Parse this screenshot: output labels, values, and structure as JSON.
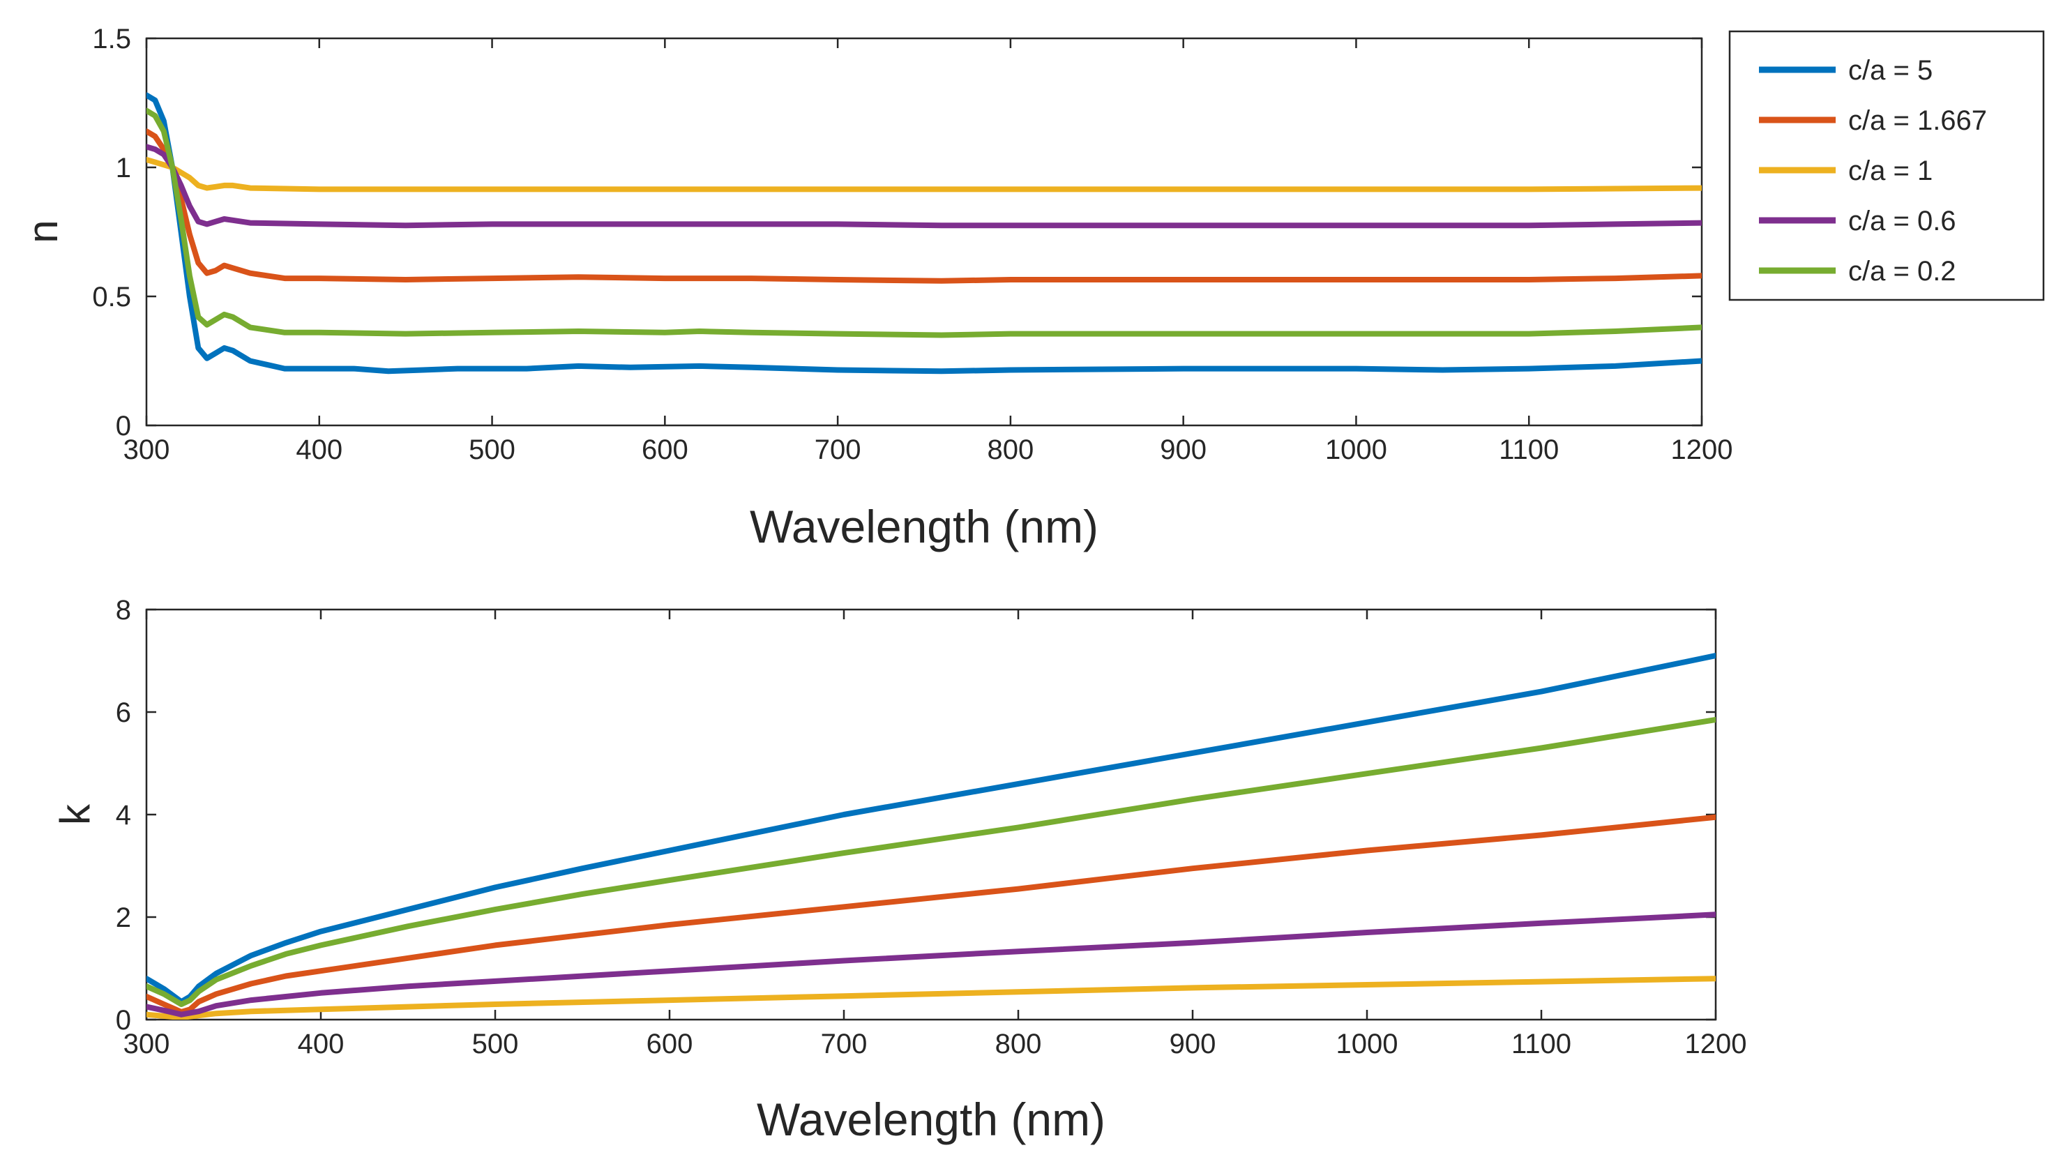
{
  "chart_data": [
    {
      "type": "line",
      "panel": "top",
      "title": "",
      "xlabel": "Wavelength (nm)",
      "ylabel": "n",
      "xlim": [
        300,
        1200
      ],
      "ylim": [
        0,
        1.5
      ],
      "xticks": [
        "300",
        "400",
        "500",
        "600",
        "700",
        "800",
        "900",
        "1000",
        "1100",
        "1200"
      ],
      "yticks": [
        "0",
        "0.5",
        "1",
        "1.5"
      ],
      "legend": {
        "placement": "outside-right",
        "entries": [
          "c/a = 5",
          "c/a = 1.667",
          "c/a = 1",
          "c/a = 0.6",
          "c/a = 0.2"
        ]
      },
      "series": [
        {
          "name": "c/a = 5",
          "color": "#0072BD",
          "points": [
            [
              300,
              1.28
            ],
            [
              305,
              1.26
            ],
            [
              310,
              1.18
            ],
            [
              315,
              1.0
            ],
            [
              320,
              0.75
            ],
            [
              325,
              0.5
            ],
            [
              330,
              0.3
            ],
            [
              335,
              0.26
            ],
            [
              340,
              0.28
            ],
            [
              345,
              0.3
            ],
            [
              350,
              0.29
            ],
            [
              360,
              0.25
            ],
            [
              380,
              0.22
            ],
            [
              400,
              0.22
            ],
            [
              420,
              0.22
            ],
            [
              440,
              0.21
            ],
            [
              460,
              0.215
            ],
            [
              480,
              0.22
            ],
            [
              500,
              0.22
            ],
            [
              520,
              0.22
            ],
            [
              550,
              0.23
            ],
            [
              580,
              0.225
            ],
            [
              620,
              0.23
            ],
            [
              650,
              0.225
            ],
            [
              700,
              0.215
            ],
            [
              760,
              0.21
            ],
            [
              800,
              0.215
            ],
            [
              900,
              0.22
            ],
            [
              1000,
              0.22
            ],
            [
              1050,
              0.215
            ],
            [
              1100,
              0.22
            ],
            [
              1150,
              0.23
            ],
            [
              1200,
              0.25
            ]
          ]
        },
        {
          "name": "c/a = 1.667",
          "color": "#D95319",
          "points": [
            [
              300,
              1.14
            ],
            [
              305,
              1.12
            ],
            [
              310,
              1.07
            ],
            [
              315,
              1.0
            ],
            [
              320,
              0.88
            ],
            [
              325,
              0.74
            ],
            [
              330,
              0.63
            ],
            [
              335,
              0.59
            ],
            [
              340,
              0.6
            ],
            [
              345,
              0.62
            ],
            [
              350,
              0.61
            ],
            [
              360,
              0.59
            ],
            [
              380,
              0.57
            ],
            [
              400,
              0.57
            ],
            [
              450,
              0.565
            ],
            [
              500,
              0.57
            ],
            [
              550,
              0.575
            ],
            [
              600,
              0.57
            ],
            [
              650,
              0.57
            ],
            [
              700,
              0.565
            ],
            [
              760,
              0.56
            ],
            [
              800,
              0.565
            ],
            [
              900,
              0.565
            ],
            [
              1000,
              0.565
            ],
            [
              1100,
              0.565
            ],
            [
              1150,
              0.57
            ],
            [
              1200,
              0.58
            ]
          ]
        },
        {
          "name": "c/a = 1",
          "color": "#EDB120",
          "points": [
            [
              300,
              1.03
            ],
            [
              305,
              1.02
            ],
            [
              310,
              1.01
            ],
            [
              315,
              1.0
            ],
            [
              320,
              0.98
            ],
            [
              325,
              0.96
            ],
            [
              330,
              0.93
            ],
            [
              335,
              0.92
            ],
            [
              340,
              0.925
            ],
            [
              345,
              0.93
            ],
            [
              350,
              0.93
            ],
            [
              360,
              0.92
            ],
            [
              400,
              0.915
            ],
            [
              500,
              0.915
            ],
            [
              600,
              0.915
            ],
            [
              700,
              0.915
            ],
            [
              800,
              0.915
            ],
            [
              900,
              0.915
            ],
            [
              1000,
              0.915
            ],
            [
              1100,
              0.915
            ],
            [
              1200,
              0.92
            ]
          ]
        },
        {
          "name": "c/a = 0.6",
          "color": "#7E2F8E",
          "points": [
            [
              300,
              1.08
            ],
            [
              305,
              1.07
            ],
            [
              310,
              1.05
            ],
            [
              315,
              1.0
            ],
            [
              320,
              0.93
            ],
            [
              325,
              0.85
            ],
            [
              330,
              0.79
            ],
            [
              335,
              0.78
            ],
            [
              340,
              0.79
            ],
            [
              345,
              0.8
            ],
            [
              350,
              0.795
            ],
            [
              360,
              0.785
            ],
            [
              400,
              0.78
            ],
            [
              450,
              0.775
            ],
            [
              500,
              0.78
            ],
            [
              600,
              0.78
            ],
            [
              700,
              0.78
            ],
            [
              760,
              0.775
            ],
            [
              800,
              0.775
            ],
            [
              900,
              0.775
            ],
            [
              1000,
              0.775
            ],
            [
              1100,
              0.775
            ],
            [
              1150,
              0.78
            ],
            [
              1200,
              0.785
            ]
          ]
        },
        {
          "name": "c/a = 0.2",
          "color": "#77AC30",
          "points": [
            [
              300,
              1.22
            ],
            [
              305,
              1.2
            ],
            [
              310,
              1.14
            ],
            [
              315,
              1.0
            ],
            [
              320,
              0.8
            ],
            [
              325,
              0.58
            ],
            [
              330,
              0.42
            ],
            [
              335,
              0.39
            ],
            [
              340,
              0.41
            ],
            [
              345,
              0.43
            ],
            [
              350,
              0.42
            ],
            [
              360,
              0.38
            ],
            [
              380,
              0.36
            ],
            [
              400,
              0.36
            ],
            [
              450,
              0.355
            ],
            [
              500,
              0.36
            ],
            [
              550,
              0.365
            ],
            [
              600,
              0.36
            ],
            [
              620,
              0.365
            ],
            [
              650,
              0.36
            ],
            [
              700,
              0.355
            ],
            [
              760,
              0.35
            ],
            [
              800,
              0.355
            ],
            [
              900,
              0.355
            ],
            [
              1000,
              0.355
            ],
            [
              1100,
              0.355
            ],
            [
              1150,
              0.365
            ],
            [
              1200,
              0.38
            ]
          ]
        }
      ]
    },
    {
      "type": "line",
      "panel": "bottom",
      "title": "",
      "xlabel": "Wavelength (nm)",
      "ylabel": "k",
      "xlim": [
        300,
        1200
      ],
      "ylim": [
        0,
        8
      ],
      "xticks": [
        "300",
        "400",
        "500",
        "600",
        "700",
        "800",
        "900",
        "1000",
        "1100",
        "1200"
      ],
      "yticks": [
        "0",
        "2",
        "4",
        "6",
        "8"
      ],
      "series": [
        {
          "name": "c/a = 5",
          "color": "#0072BD",
          "points": [
            [
              300,
              0.8
            ],
            [
              310,
              0.6
            ],
            [
              320,
              0.35
            ],
            [
              325,
              0.45
            ],
            [
              330,
              0.65
            ],
            [
              340,
              0.9
            ],
            [
              360,
              1.25
            ],
            [
              380,
              1.5
            ],
            [
              400,
              1.72
            ],
            [
              450,
              2.15
            ],
            [
              500,
              2.58
            ],
            [
              550,
              2.95
            ],
            [
              600,
              3.3
            ],
            [
              700,
              4.0
            ],
            [
              800,
              4.6
            ],
            [
              900,
              5.2
            ],
            [
              1000,
              5.8
            ],
            [
              1100,
              6.4
            ],
            [
              1200,
              7.1
            ]
          ]
        },
        {
          "name": "c/a = 1.667",
          "color": "#D95319",
          "points": [
            [
              300,
              0.45
            ],
            [
              310,
              0.3
            ],
            [
              320,
              0.15
            ],
            [
              325,
              0.2
            ],
            [
              330,
              0.35
            ],
            [
              340,
              0.5
            ],
            [
              360,
              0.7
            ],
            [
              380,
              0.85
            ],
            [
              400,
              0.95
            ],
            [
              450,
              1.2
            ],
            [
              500,
              1.45
            ],
            [
              550,
              1.65
            ],
            [
              600,
              1.85
            ],
            [
              700,
              2.2
            ],
            [
              800,
              2.55
            ],
            [
              900,
              2.95
            ],
            [
              1000,
              3.3
            ],
            [
              1100,
              3.6
            ],
            [
              1200,
              3.95
            ]
          ]
        },
        {
          "name": "c/a = 1",
          "color": "#EDB120",
          "points": [
            [
              300,
              0.1
            ],
            [
              310,
              0.07
            ],
            [
              320,
              0.04
            ],
            [
              330,
              0.08
            ],
            [
              340,
              0.12
            ],
            [
              360,
              0.16
            ],
            [
              400,
              0.2
            ],
            [
              450,
              0.25
            ],
            [
              500,
              0.3
            ],
            [
              600,
              0.38
            ],
            [
              700,
              0.46
            ],
            [
              800,
              0.54
            ],
            [
              900,
              0.62
            ],
            [
              1000,
              0.68
            ],
            [
              1100,
              0.74
            ],
            [
              1200,
              0.8
            ]
          ]
        },
        {
          "name": "c/a = 0.6",
          "color": "#7E2F8E",
          "points": [
            [
              300,
              0.25
            ],
            [
              310,
              0.18
            ],
            [
              320,
              0.1
            ],
            [
              330,
              0.16
            ],
            [
              340,
              0.27
            ],
            [
              360,
              0.38
            ],
            [
              400,
              0.52
            ],
            [
              450,
              0.65
            ],
            [
              500,
              0.75
            ],
            [
              600,
              0.95
            ],
            [
              700,
              1.15
            ],
            [
              800,
              1.33
            ],
            [
              900,
              1.5
            ],
            [
              1000,
              1.7
            ],
            [
              1100,
              1.88
            ],
            [
              1200,
              2.05
            ]
          ]
        },
        {
          "name": "c/a = 0.2",
          "color": "#77AC30",
          "points": [
            [
              300,
              0.65
            ],
            [
              310,
              0.5
            ],
            [
              320,
              0.3
            ],
            [
              325,
              0.38
            ],
            [
              330,
              0.55
            ],
            [
              340,
              0.78
            ],
            [
              360,
              1.05
            ],
            [
              380,
              1.28
            ],
            [
              400,
              1.45
            ],
            [
              450,
              1.82
            ],
            [
              500,
              2.15
            ],
            [
              550,
              2.45
            ],
            [
              600,
              2.72
            ],
            [
              700,
              3.25
            ],
            [
              800,
              3.75
            ],
            [
              900,
              4.3
            ],
            [
              1000,
              4.8
            ],
            [
              1100,
              5.3
            ],
            [
              1200,
              5.85
            ]
          ]
        }
      ]
    }
  ]
}
